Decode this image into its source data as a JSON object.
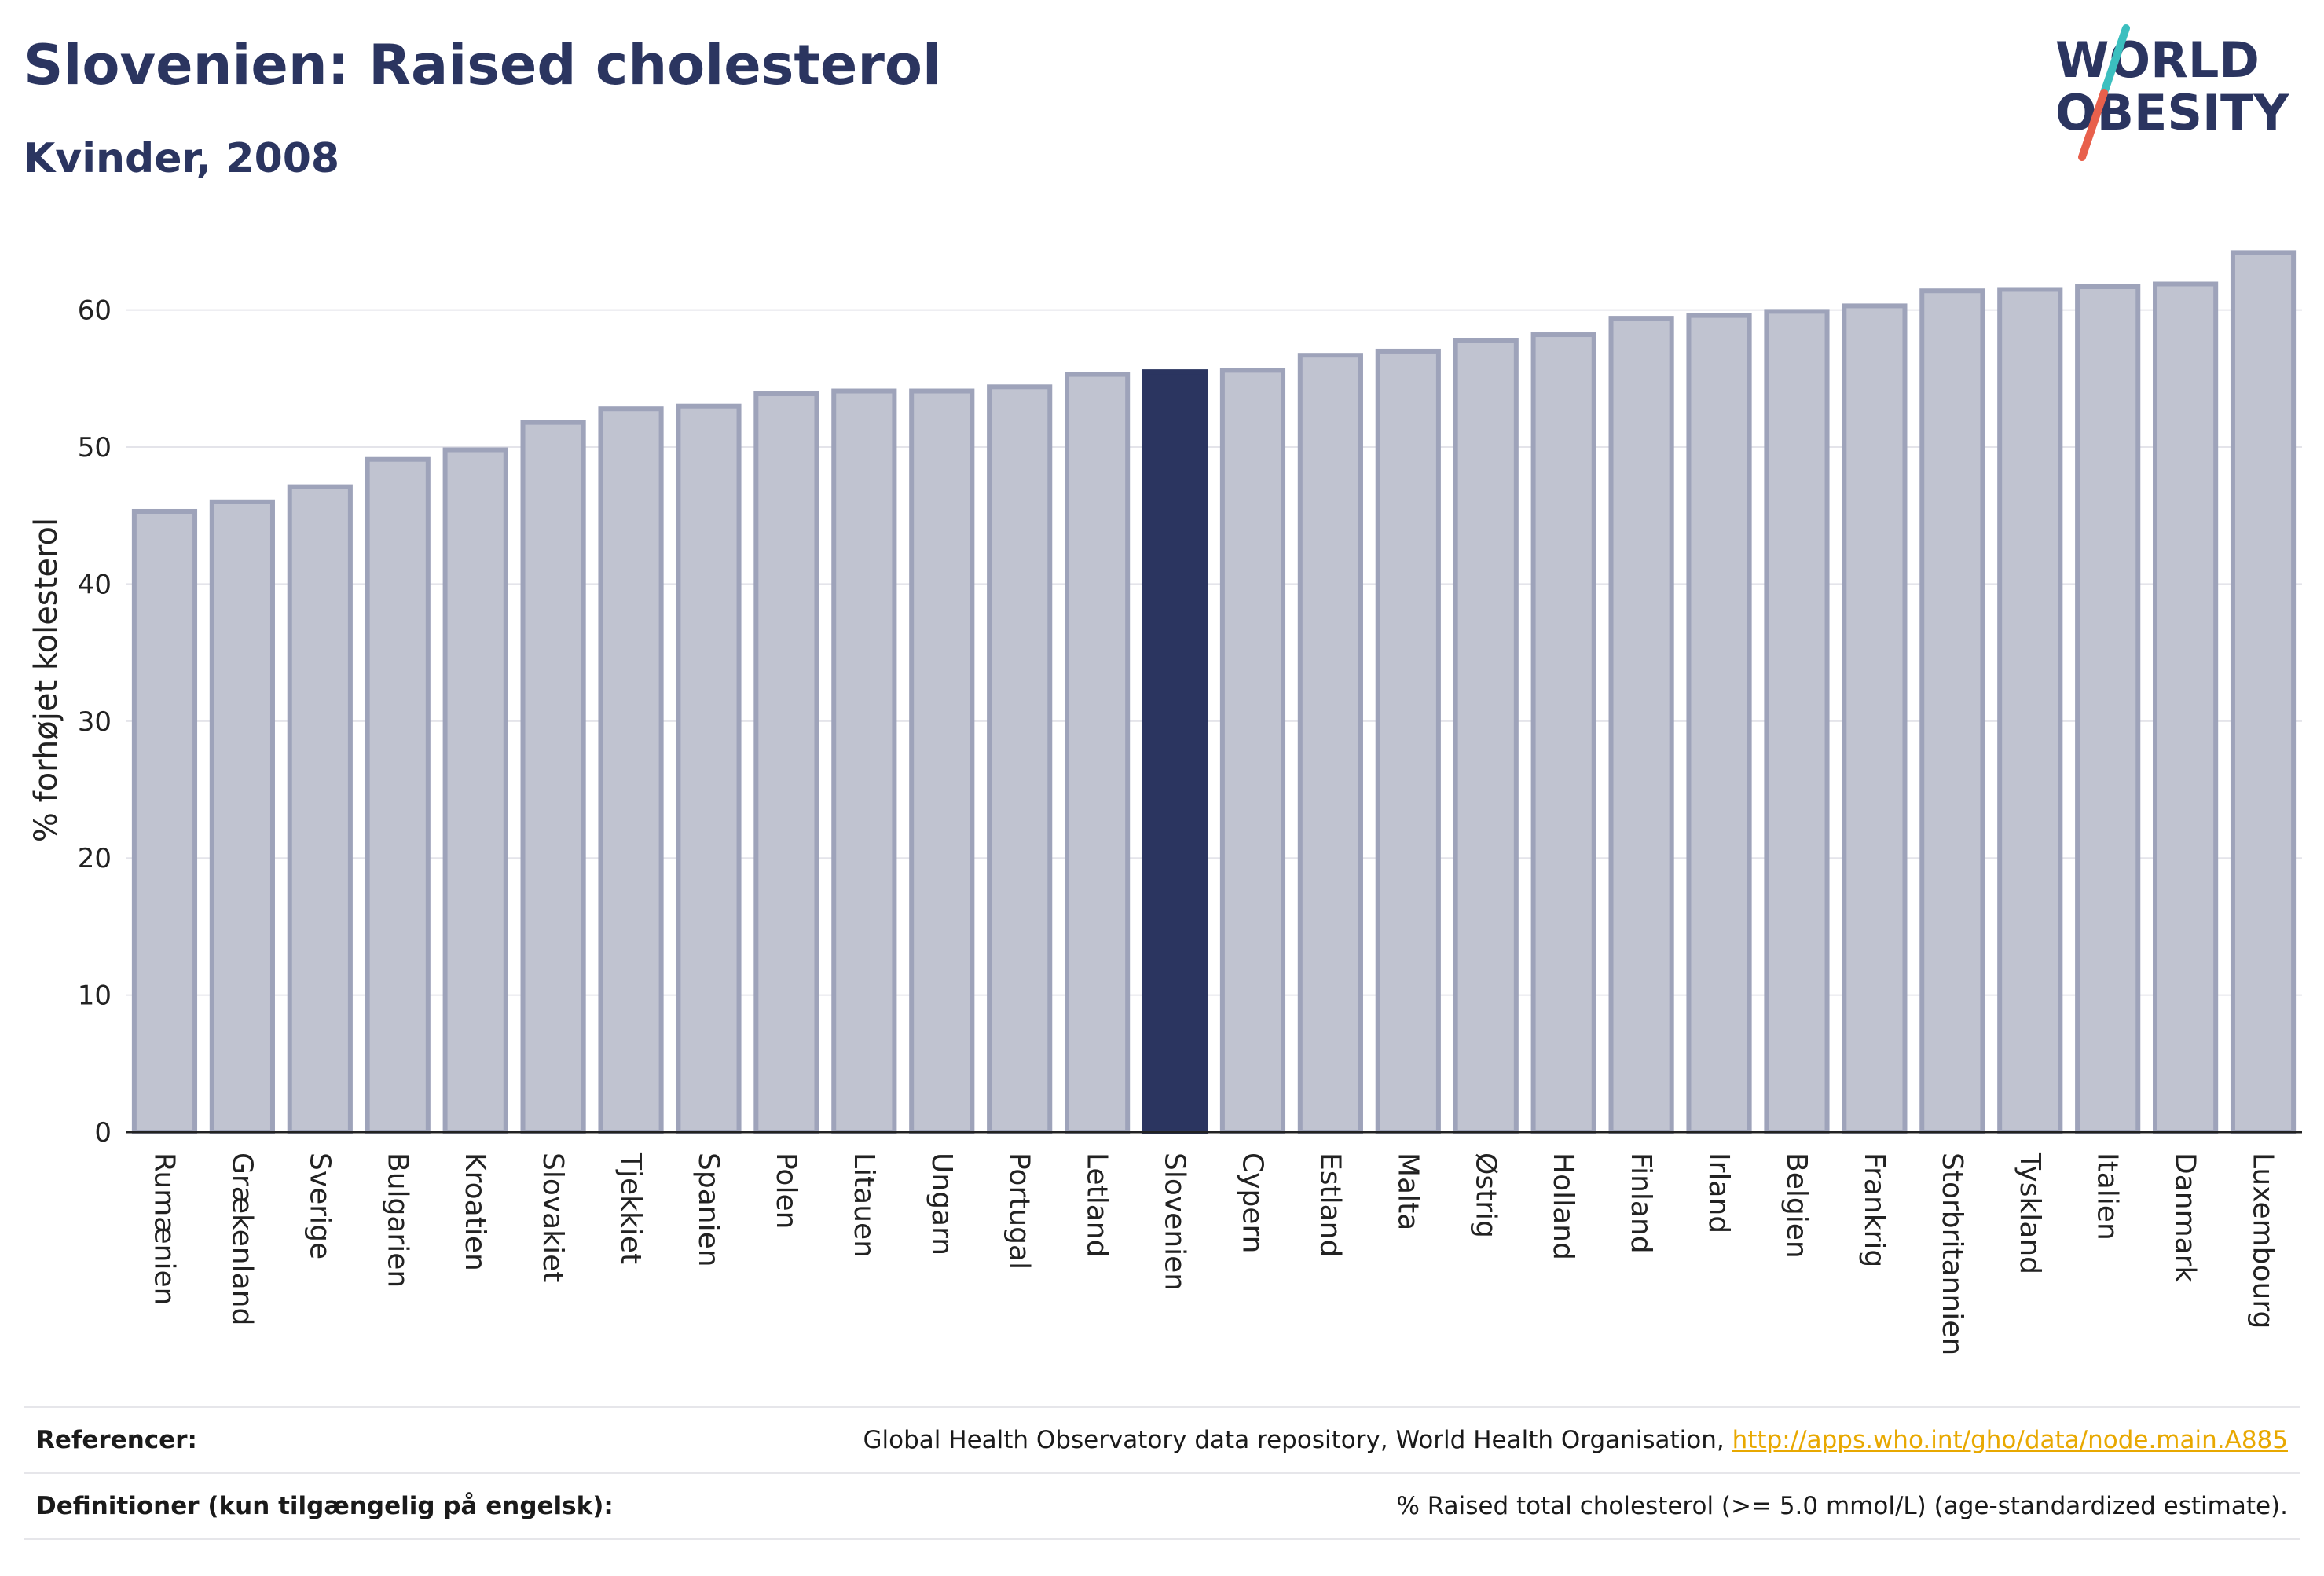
{
  "header": {
    "title": "Slovenien: Raised cholesterol",
    "subtitle": "Kvinder, 2008"
  },
  "logo": {
    "line1": "WORLD",
    "line2": "OBESITY",
    "colors": {
      "text": "#2b3560",
      "slash_top": "#3bbfbf",
      "slash_bottom": "#e8604c"
    }
  },
  "colors": {
    "highlight": "#2b3560",
    "bar": "#c0c3d0",
    "bar_border": "#9ea3ba",
    "grid": "#e4e4ea",
    "axis": "#222222",
    "link": "#e8a800"
  },
  "chart_data": {
    "type": "bar",
    "xlabel": "",
    "ylabel": "% forhøjet kolesterol",
    "ylim": [
      0,
      66
    ],
    "yticks": [
      0,
      10,
      20,
      30,
      40,
      50,
      60
    ],
    "grid": true,
    "highlight": "Slovenien",
    "categories": [
      "Rumænien",
      "Grækenland",
      "Sverige",
      "Bulgarien",
      "Kroatien",
      "Slovakiet",
      "Tjekkiet",
      "Spanien",
      "Polen",
      "Litauen",
      "Ungarn",
      "Portugal",
      "Letland",
      "Slovenien",
      "Cypern",
      "Estland",
      "Malta",
      "Østrig",
      "Holland",
      "Finland",
      "Irland",
      "Belgien",
      "Frankrig",
      "Storbritannien",
      "Tyskland",
      "Italien",
      "Danmark",
      "Luxembourg"
    ],
    "values": [
      45.3,
      46.0,
      47.1,
      49.1,
      49.8,
      51.8,
      52.8,
      53.0,
      53.9,
      54.1,
      54.1,
      54.4,
      55.3,
      55.5,
      55.6,
      56.7,
      57.0,
      57.8,
      58.2,
      59.4,
      59.6,
      59.9,
      60.3,
      61.4,
      61.5,
      61.7,
      61.9,
      64.2
    ]
  },
  "footer": {
    "references_label": "Referencer:",
    "references_text": "Global Health Observatory data repository, World Health Organisation, ",
    "references_link": "http://apps.who.int/gho/data/node.main.A885",
    "definitions_label": "Definitioner (kun tilgængelig på engelsk):",
    "definitions_text": "% Raised total cholesterol (>= 5.0 mmol/L) (age-standardized estimate)."
  }
}
